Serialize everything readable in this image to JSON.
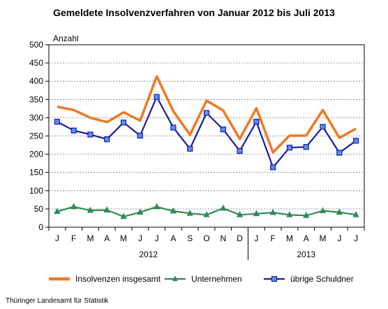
{
  "title": "Gemeldete Insolvenzverfahren von Januar 2012 bis Juli 2013",
  "source": "Thüringer Landesamt für Statistik",
  "chart_data": {
    "type": "line",
    "title": "Gemeldete Insolvenzverfahren von Januar 2012 bis Juli 2013",
    "ylabel": "Anzahl",
    "xlabel": "",
    "ylim": [
      0,
      500
    ],
    "yticks": [
      0,
      50,
      100,
      150,
      200,
      250,
      300,
      350,
      400,
      450,
      500
    ],
    "grid": "horizontal dotted",
    "legend_position": "bottom",
    "categories": [
      "J",
      "F",
      "M",
      "A",
      "M",
      "J",
      "J",
      "A",
      "S",
      "O",
      "N",
      "D",
      "J",
      "F",
      "M",
      "A",
      "M",
      "J",
      "J"
    ],
    "year_groups": [
      {
        "label": "2012",
        "start": 0,
        "end": 11
      },
      {
        "label": "2013",
        "start": 12,
        "end": 18
      }
    ],
    "series": [
      {
        "name": "Insolvenzen insgesamt",
        "color": "#f07820",
        "marker": "none",
        "values": [
          330,
          321,
          300,
          288,
          315,
          292,
          413,
          318,
          253,
          347,
          320,
          242,
          326,
          205,
          251,
          251,
          321,
          245,
          270
        ]
      },
      {
        "name": "Unternehmen",
        "color": "#2e8b57",
        "marker": "triangle",
        "values": [
          43,
          56,
          46,
          47,
          29,
          41,
          56,
          44,
          38,
          34,
          52,
          34,
          37,
          40,
          34,
          32,
          45,
          41,
          34
        ]
      },
      {
        "name": "übrige Schuldner",
        "color": "#1a1aa0",
        "marker": "square",
        "values": [
          289,
          265,
          254,
          241,
          287,
          251,
          357,
          273,
          215,
          313,
          268,
          209,
          289,
          164,
          218,
          220,
          275,
          204,
          237
        ]
      }
    ]
  }
}
